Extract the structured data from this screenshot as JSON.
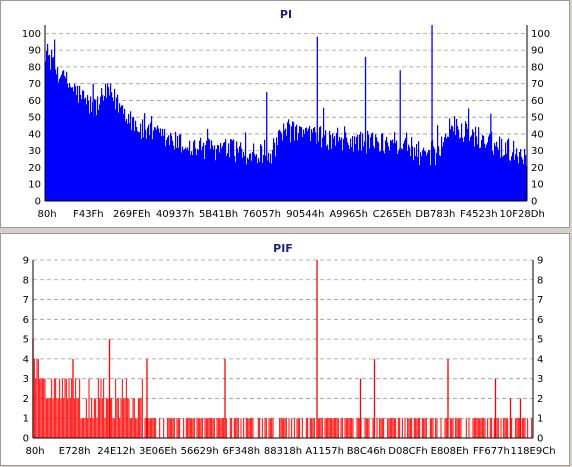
{
  "chart_data": [
    {
      "type": "bar",
      "title": "PI",
      "color": "#0000ff",
      "ylim": [
        0,
        105
      ],
      "y_ticks": [
        "0",
        "10",
        "20",
        "30",
        "40",
        "50",
        "60",
        "70",
        "80",
        "90",
        "100"
      ],
      "x_ticks": [
        "80h",
        "F43Fh",
        "269FEh",
        "40937h",
        "5B41Bh",
        "76057h",
        "90544h",
        "A9965h",
        "C265Eh",
        "DB783h",
        "F4523h",
        "10F28Dh"
      ],
      "grid": true,
      "baseline_segments": [
        {
          "x_start": 0.0,
          "x_end": 0.03,
          "value_start": 90,
          "value_end": 75
        },
        {
          "x_start": 0.03,
          "x_end": 0.1,
          "value_start": 75,
          "value_end": 55
        },
        {
          "x_start": 0.1,
          "x_end": 0.13,
          "value_start": 55,
          "value_end": 65
        },
        {
          "x_start": 0.13,
          "x_end": 0.2,
          "value_start": 65,
          "value_end": 42
        },
        {
          "x_start": 0.2,
          "x_end": 0.3,
          "value_start": 42,
          "value_end": 32
        },
        {
          "x_start": 0.3,
          "x_end": 0.4,
          "value_start": 32,
          "value_end": 30
        },
        {
          "x_start": 0.4,
          "x_end": 0.46,
          "value_start": 30,
          "value_end": 25
        },
        {
          "x_start": 0.46,
          "x_end": 0.5,
          "value_start": 25,
          "value_end": 42
        },
        {
          "x_start": 0.5,
          "x_end": 0.6,
          "value_start": 42,
          "value_end": 36
        },
        {
          "x_start": 0.6,
          "x_end": 0.75,
          "value_start": 36,
          "value_end": 34
        },
        {
          "x_start": 0.75,
          "x_end": 0.8,
          "value_start": 34,
          "value_end": 23
        },
        {
          "x_start": 0.8,
          "x_end": 0.84,
          "value_start": 23,
          "value_end": 45
        },
        {
          "x_start": 0.84,
          "x_end": 0.92,
          "value_start": 45,
          "value_end": 35
        },
        {
          "x_start": 0.92,
          "x_end": 1.0,
          "value_start": 35,
          "value_end": 27
        }
      ],
      "spikes": [
        {
          "x": 0.1,
          "value": 70
        },
        {
          "x": 0.46,
          "value": 65
        },
        {
          "x": 0.565,
          "value": 98
        },
        {
          "x": 0.665,
          "value": 86
        },
        {
          "x": 0.737,
          "value": 78
        },
        {
          "x": 0.803,
          "value": 105
        },
        {
          "x": 0.925,
          "value": 52
        }
      ]
    },
    {
      "type": "bar",
      "title": "PIF",
      "color": "#ff0000",
      "ylim": [
        0,
        9
      ],
      "y_ticks": [
        "0",
        "1",
        "2",
        "3",
        "4",
        "5",
        "6",
        "7",
        "8",
        "9"
      ],
      "x_ticks": [
        "80h",
        "E728h",
        "24E12h",
        "3E06Eh",
        "56629h",
        "6F348h",
        "88318h",
        "A1157h",
        "B8C46h",
        "D08CFh",
        "E808Eh",
        "FF677h",
        "118E9Ch"
      ],
      "grid": true,
      "segments": [
        {
          "x_start": 0.0,
          "x_end": 0.02,
          "value_start": 4,
          "value_end": 3
        },
        {
          "x_start": 0.02,
          "x_end": 0.09,
          "value_start": 3,
          "value_end": 2
        },
        {
          "x_start": 0.09,
          "x_end": 0.22,
          "value_start": 2,
          "value_end": 2
        },
        {
          "x_start": 0.22,
          "x_end": 1.0,
          "value_start": 1,
          "value_end": 1
        }
      ],
      "spikes": [
        {
          "x": 0.0,
          "value": 5
        },
        {
          "x": 0.153,
          "value": 5
        },
        {
          "x": 0.08,
          "value": 4
        },
        {
          "x": 0.228,
          "value": 4
        },
        {
          "x": 0.384,
          "value": 4
        },
        {
          "x": 0.568,
          "value": 9
        },
        {
          "x": 0.655,
          "value": 3
        },
        {
          "x": 0.683,
          "value": 4
        },
        {
          "x": 0.83,
          "value": 4
        },
        {
          "x": 0.925,
          "value": 3
        },
        {
          "x": 0.955,
          "value": 2
        },
        {
          "x": 0.975,
          "value": 2
        }
      ]
    }
  ]
}
